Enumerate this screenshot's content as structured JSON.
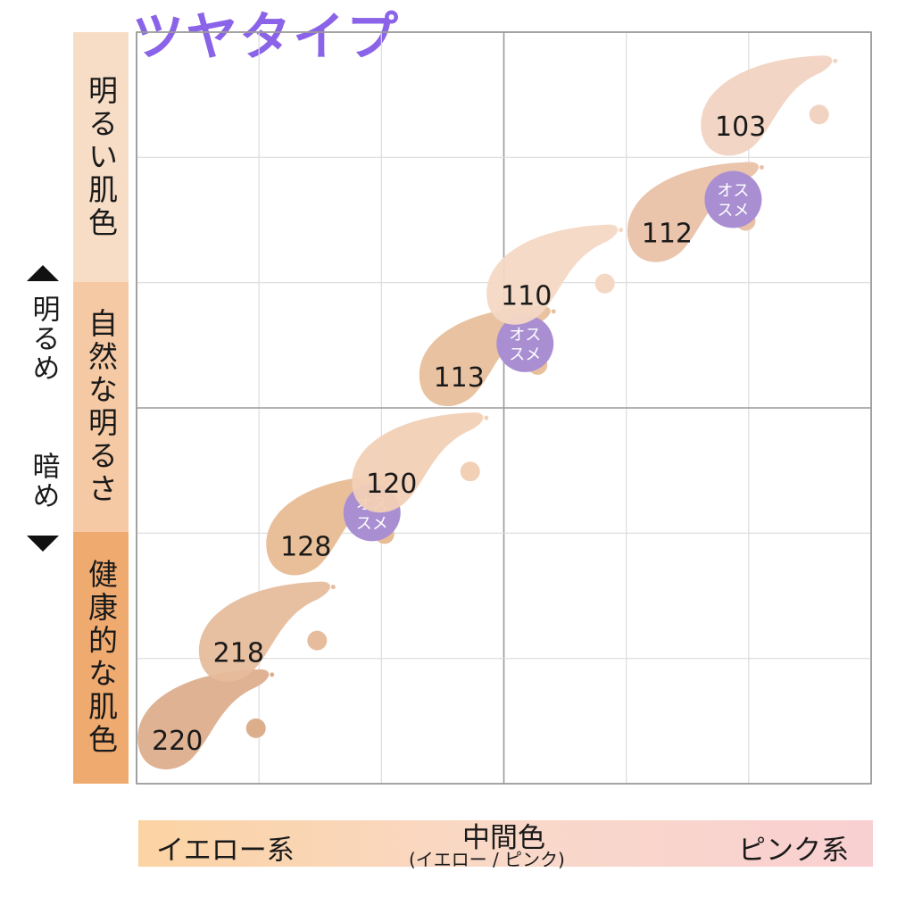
{
  "title": "ツヤタイプ",
  "title_color": "#8a63e8",
  "y_axis": {
    "bands": [
      {
        "label": "明るい肌色",
        "color": "#f7ddc6"
      },
      {
        "label": "自然な明るさ",
        "color": "#f5c9a3"
      },
      {
        "label": "健康的な肌色",
        "color": "#efaa70"
      }
    ],
    "direction_top": "明るめ",
    "direction_bottom": "暗め"
  },
  "x_axis": {
    "left_label": "イエロー系",
    "center_label": "中間色",
    "center_sublabel": "(イエロー / ピンク)",
    "right_label": "ピンク系",
    "gradient": [
      "#fbd3a3",
      "#f9d8c8",
      "#f9d0d2"
    ]
  },
  "chart_data": {
    "type": "scatter",
    "title": "ツヤタイプ",
    "xlabel": "",
    "ylabel": "",
    "grid": true,
    "grid_major": [
      2,
      2
    ],
    "grid_minor": [
      6,
      6
    ],
    "xlim": [
      0,
      6
    ],
    "ylim": [
      0,
      6
    ],
    "recommend_badge": "オス スメ",
    "recommend_color": "#a98fd2",
    "points": [
      {
        "label": "220",
        "x": 0.45,
        "y": 0.4,
        "color": "#dcae8c",
        "recommended": false
      },
      {
        "label": "218",
        "x": 0.95,
        "y": 1.1,
        "color": "#e6bc9c",
        "recommended": false
      },
      {
        "label": "128",
        "x": 1.5,
        "y": 1.95,
        "color": "#e8bc94",
        "recommended": true
      },
      {
        "label": "120",
        "x": 2.2,
        "y": 2.45,
        "color": "#f2d0b6",
        "recommended": false
      },
      {
        "label": "113",
        "x": 2.75,
        "y": 3.3,
        "color": "#e8c09c",
        "recommended": true
      },
      {
        "label": "110",
        "x": 3.3,
        "y": 3.95,
        "color": "#f4d8c4",
        "recommended": false
      },
      {
        "label": "112",
        "x": 4.45,
        "y": 4.45,
        "color": "#e9c1a6",
        "recommended": true
      },
      {
        "label": "103",
        "x": 5.05,
        "y": 5.3,
        "color": "#f1d3c1",
        "recommended": false
      }
    ]
  }
}
